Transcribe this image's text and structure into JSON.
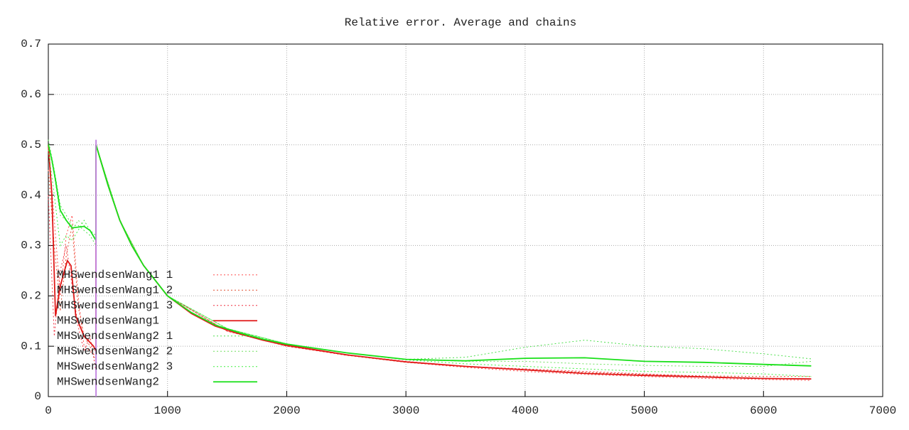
{
  "chart_data": {
    "type": "line",
    "title": "Relative error. Average and chains",
    "xlim": [
      0,
      7000
    ],
    "xticks": [
      0,
      1000,
      2000,
      3000,
      4000,
      5000,
      6000,
      7000
    ],
    "ylim": [
      0,
      0.7
    ],
    "yticks": [
      0,
      0.1,
      0.2,
      0.3,
      0.4,
      0.5,
      0.6,
      0.7
    ],
    "grid": true,
    "legend": "bottom-left",
    "series": [
      {
        "name": "MHSwendsenWang1 1",
        "color": "#ff5050",
        "dashed": true,
        "x": [
          0,
          50,
          100,
          150,
          200,
          250,
          300,
          350,
          400,
          400,
          600,
          800,
          1000,
          1500,
          2000,
          2500,
          3000,
          3500,
          4000,
          4500,
          5000,
          5500,
          6000,
          6400
        ],
        "values": [
          0.5,
          0.35,
          0.2,
          0.32,
          0.36,
          0.2,
          0.1,
          0.09,
          0.08,
          0.5,
          0.35,
          0.26,
          0.2,
          0.13,
          0.1,
          0.083,
          0.068,
          0.058,
          0.05,
          0.044,
          0.04,
          0.036,
          0.034,
          0.032
        ]
      },
      {
        "name": "MHSwendsenWang1 2",
        "color": "#e05030",
        "dashed": true,
        "x": [
          0,
          50,
          100,
          150,
          200,
          250,
          300,
          350,
          400,
          400,
          600,
          800,
          1000,
          1500,
          2000,
          2500,
          3000,
          3500,
          4000,
          4500,
          5000,
          5500,
          6000,
          6400
        ],
        "values": [
          0.45,
          0.3,
          0.17,
          0.28,
          0.34,
          0.18,
          0.12,
          0.1,
          0.07,
          0.5,
          0.35,
          0.26,
          0.2,
          0.13,
          0.1,
          0.082,
          0.068,
          0.06,
          0.054,
          0.048,
          0.044,
          0.041,
          0.04,
          0.04
        ]
      },
      {
        "name": "MHSwendsenWang1 3",
        "color": "#f03040",
        "dashed": true,
        "x": [
          0,
          50,
          100,
          150,
          200,
          250,
          300,
          350,
          400,
          400,
          600,
          800,
          1000,
          1500,
          2000,
          2500,
          3000,
          3500,
          4000,
          4500,
          5000,
          5500,
          6000,
          6400
        ],
        "values": [
          0.4,
          0.12,
          0.25,
          0.3,
          0.22,
          0.14,
          0.09,
          0.12,
          0.05,
          0.5,
          0.35,
          0.26,
          0.2,
          0.13,
          0.1,
          0.083,
          0.07,
          0.06,
          0.055,
          0.05,
          0.045,
          0.04,
          0.036,
          0.035
        ]
      },
      {
        "name": "MHSwendsenWang1",
        "color": "#e01818",
        "dashed": false,
        "x": [
          0,
          30,
          60,
          100,
          160,
          190,
          230,
          300,
          380,
          400,
          400,
          500,
          600,
          700,
          800,
          1000,
          1200,
          1400,
          1600,
          1800,
          2000,
          2500,
          3000,
          3500,
          4000,
          4500,
          5000,
          5500,
          6000,
          6400
        ],
        "values": [
          0.5,
          0.4,
          0.16,
          0.22,
          0.27,
          0.26,
          0.16,
          0.12,
          0.1,
          0.09,
          0.5,
          0.42,
          0.35,
          0.3,
          0.26,
          0.2,
          0.165,
          0.14,
          0.125,
          0.112,
          0.102,
          0.083,
          0.069,
          0.06,
          0.053,
          0.046,
          0.042,
          0.039,
          0.036,
          0.035
        ]
      },
      {
        "name": "MHSwendsenWang2 1",
        "color": "#50e050",
        "dashed": true,
        "x": [
          0,
          50,
          100,
          150,
          200,
          250,
          300,
          350,
          400,
          400,
          600,
          800,
          1000,
          1500,
          2000,
          2500,
          3000,
          3500,
          4000,
          4500,
          5000,
          5500,
          6000,
          6400
        ],
        "values": [
          0.51,
          0.45,
          0.38,
          0.36,
          0.34,
          0.34,
          0.33,
          0.32,
          0.3,
          0.5,
          0.35,
          0.26,
          0.2,
          0.135,
          0.105,
          0.087,
          0.074,
          0.078,
          0.098,
          0.112,
          0.1,
          0.095,
          0.085,
          0.075
        ]
      },
      {
        "name": "MHSwendsenWang2 2",
        "color": "#70e060",
        "dashed": true,
        "x": [
          0,
          50,
          100,
          150,
          200,
          250,
          300,
          350,
          400,
          400,
          600,
          800,
          1000,
          1500,
          2000,
          2500,
          3000,
          3500,
          4000,
          4500,
          5000,
          5500,
          6000,
          6400
        ],
        "values": [
          0.5,
          0.44,
          0.36,
          0.35,
          0.33,
          0.35,
          0.34,
          0.33,
          0.31,
          0.5,
          0.35,
          0.26,
          0.2,
          0.135,
          0.105,
          0.087,
          0.074,
          0.07,
          0.07,
          0.065,
          0.062,
          0.06,
          0.06,
          0.07
        ]
      },
      {
        "name": "MHSwendsenWang2 3",
        "color": "#40f040",
        "dashed": true,
        "x": [
          0,
          50,
          100,
          150,
          200,
          250,
          300,
          350,
          400,
          400,
          600,
          800,
          1000,
          1500,
          2000,
          2500,
          3000,
          3500,
          4000,
          4500,
          5000,
          5500,
          6000,
          6400
        ],
        "values": [
          0.49,
          0.4,
          0.3,
          0.32,
          0.31,
          0.33,
          0.35,
          0.33,
          0.32,
          0.5,
          0.35,
          0.26,
          0.2,
          0.135,
          0.104,
          0.087,
          0.073,
          0.065,
          0.06,
          0.055,
          0.05,
          0.048,
          0.045,
          0.04
        ]
      },
      {
        "name": "MHSwendsenWang2",
        "color": "#18e018",
        "dashed": false,
        "x": [
          0,
          30,
          60,
          100,
          150,
          200,
          300,
          350,
          400,
          400,
          500,
          600,
          700,
          800,
          1000,
          1200,
          1400,
          1600,
          1800,
          2000,
          2500,
          3000,
          3500,
          4000,
          4500,
          5000,
          5500,
          6000,
          6400
        ],
        "values": [
          0.5,
          0.47,
          0.43,
          0.37,
          0.35,
          0.335,
          0.338,
          0.33,
          0.31,
          0.5,
          0.42,
          0.35,
          0.3,
          0.26,
          0.2,
          0.167,
          0.142,
          0.127,
          0.114,
          0.104,
          0.087,
          0.074,
          0.071,
          0.076,
          0.077,
          0.07,
          0.068,
          0.064,
          0.061
        ]
      },
      {
        "color": "#c080e0",
        "dashed": false,
        "x": [
          400,
          400
        ],
        "values": [
          0,
          0.51
        ]
      }
    ]
  }
}
